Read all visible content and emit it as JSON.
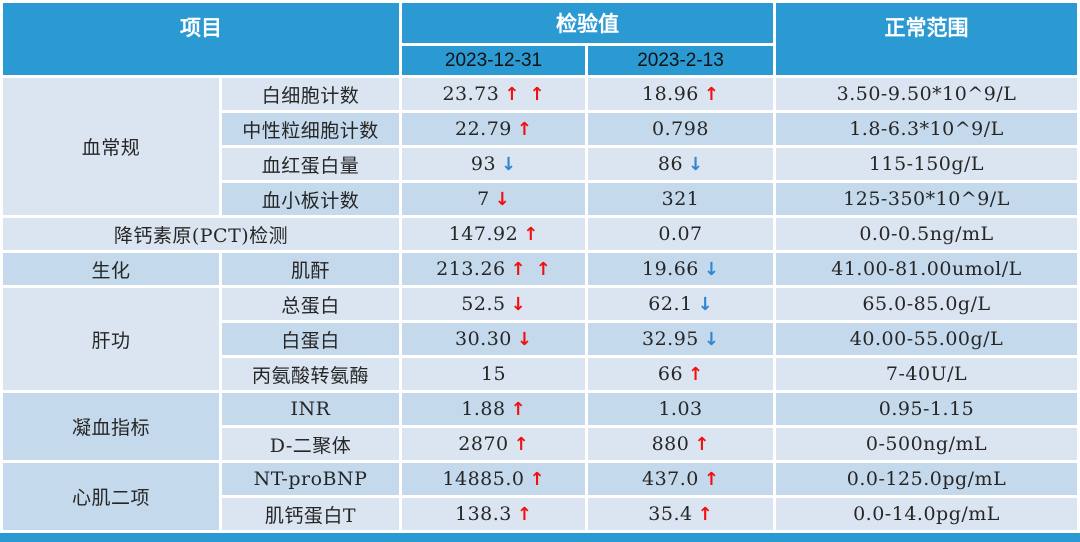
{
  "colors": {
    "header_blue": "#2b9ad3",
    "row_light": "#dbe5f1",
    "row_dark": "#c5d9ec",
    "arrow_red": "#f20f0f",
    "arrow_blue": "#2e86d4",
    "header_text": "#ffffff",
    "date_text": "#111111",
    "body_text": "#262626"
  },
  "chart_data": {
    "type": "table",
    "header": {
      "item_label": "项目",
      "value_label": "检验值",
      "range_label": "正常范围",
      "date_columns": [
        "2023-12-31",
        "2023-2-13"
      ]
    },
    "rows": [
      {
        "shade": "light",
        "category": "血常规",
        "category_rowspan": 4,
        "category_shade": "light",
        "item": "白细胞计数",
        "value1": {
          "text": "23.73",
          "arrows": [
            "up-red",
            "up-red"
          ]
        },
        "value2": {
          "text": "18.96",
          "arrows": [
            "up-red"
          ]
        },
        "range": "3.50-9.50*10^9/L"
      },
      {
        "shade": "dark",
        "item": "中性粒细胞计数",
        "value1": {
          "text": "22.79",
          "arrows": [
            "up-red"
          ]
        },
        "value2": {
          "text": "0.798",
          "arrows": []
        },
        "range": "1.8-6.3*10^9/L"
      },
      {
        "shade": "light",
        "item": "血红蛋白量",
        "value1": {
          "text": "93",
          "arrows": [
            "down-blue"
          ]
        },
        "value2": {
          "text": "86",
          "arrows": [
            "down-blue"
          ]
        },
        "range": "115-150g/L"
      },
      {
        "shade": "dark",
        "item": "血小板计数",
        "value1": {
          "text": "7",
          "arrows": [
            "down-red"
          ]
        },
        "value2": {
          "text": "321",
          "arrows": []
        },
        "range": "125-350*10^9/L"
      },
      {
        "shade": "light",
        "item": "降钙素原(PCT)检测",
        "item_colspan": 2,
        "value1": {
          "text": "147.92",
          "arrows": [
            "up-red"
          ]
        },
        "value2": {
          "text": "0.07",
          "arrows": []
        },
        "range": "0.0-0.5ng/mL"
      },
      {
        "shade": "dark",
        "category": "生化",
        "category_rowspan": 1,
        "category_shade": "dark",
        "item": "肌酐",
        "value1": {
          "text": "213.26",
          "arrows": [
            "up-red",
            "up-red"
          ]
        },
        "value2": {
          "text": "19.66",
          "arrows": [
            "down-blue"
          ]
        },
        "range": "41.00-81.00umol/L"
      },
      {
        "shade": "light",
        "category": "肝功",
        "category_rowspan": 3,
        "category_shade": "light",
        "item": "总蛋白",
        "value1": {
          "text": "52.5",
          "arrows": [
            "down-red"
          ]
        },
        "value2": {
          "text": "62.1",
          "arrows": [
            "down-blue"
          ]
        },
        "range": "65.0-85.0g/L"
      },
      {
        "shade": "dark",
        "item": "白蛋白",
        "value1": {
          "text": "30.30",
          "arrows": [
            "down-red"
          ]
        },
        "value2": {
          "text": "32.95",
          "arrows": [
            "down-blue"
          ]
        },
        "range": "40.00-55.00g/L"
      },
      {
        "shade": "light",
        "item": "丙氨酸转氨酶",
        "value1": {
          "text": "15",
          "arrows": []
        },
        "value2": {
          "text": "66",
          "arrows": [
            "up-red"
          ]
        },
        "range": "7-40U/L"
      },
      {
        "shade": "dark",
        "category": "凝血指标",
        "category_rowspan": 2,
        "category_shade": "dark",
        "item": "INR",
        "value1": {
          "text": "1.88",
          "arrows": [
            "up-red"
          ]
        },
        "value2": {
          "text": "1.03",
          "arrows": []
        },
        "range": "0.95-1.15"
      },
      {
        "shade": "light",
        "item": "D-二聚体",
        "value1": {
          "text": "2870",
          "arrows": [
            "up-red"
          ]
        },
        "value2": {
          "text": "880",
          "arrows": [
            "up-red"
          ]
        },
        "range": "0-500ng/mL"
      },
      {
        "shade": "dark",
        "category": "心肌二项",
        "category_rowspan": 2,
        "category_shade": "dark",
        "item": "NT-proBNP",
        "value1": {
          "text": "14885.0",
          "arrows": [
            "up-red"
          ]
        },
        "value2": {
          "text": "437.0",
          "arrows": [
            "up-red"
          ]
        },
        "range": "0.0-125.0pg/mL"
      },
      {
        "shade": "light",
        "item": "肌钙蛋白T",
        "value1": {
          "text": "138.3",
          "arrows": [
            "up-red"
          ]
        },
        "value2": {
          "text": "35.4",
          "arrows": [
            "up-red"
          ]
        },
        "range": "0.0-14.0pg/mL"
      }
    ]
  }
}
